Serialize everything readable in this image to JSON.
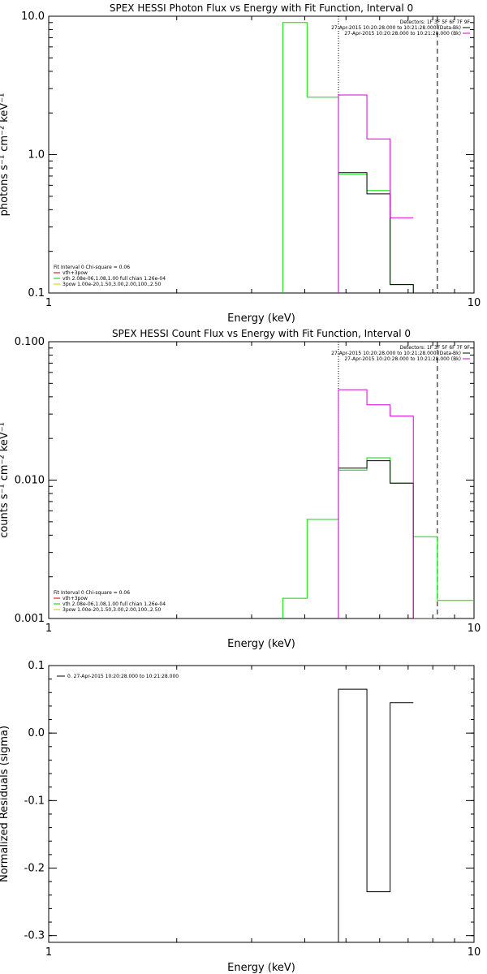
{
  "chart_data": [
    {
      "type": "line",
      "title": "SPEX HESSI Photon Flux vs Energy with Fit Function, Interval 0",
      "xlabel": "Energy (keV)",
      "ylabel": "photons s⁻¹ cm⁻² keV⁻¹",
      "xscale": "log",
      "yscale": "log",
      "xlim": [
        1,
        10
      ],
      "ylim": [
        0.1,
        10
      ],
      "x_ticks": [
        "1",
        "10"
      ],
      "y_ticks": [
        {
          "value": 0.1,
          "label": "0.1"
        },
        {
          "value": 1,
          "label": "1.0"
        },
        {
          "value": 10,
          "label": "10.0"
        }
      ],
      "grid": false,
      "legend_top_right": {
        "lines": [
          "Detectors: 1F 3F 5F 6F 7F 9F",
          "27-Apr-2015 10:20:28.000 to 10:21:28.000 (Data-Bk)",
          "27-Apr-2015 10:20:28.000 to 10:21:28.000 (Bk)"
        ],
        "colors": [
          "",
          "#000000",
          "#cc00cc"
        ]
      },
      "legend_bottom_left": {
        "lines": [
          "Fit Interval 0   Chi-square = 0.06",
          "vth+3pow",
          "vth 2.08e-06,1.08,1.00  full chian 1.26e-04",
          "3pow 1.00e-20,1.50,3.00,2.00,100.,2.50"
        ],
        "colors": [
          "",
          "#cc0000",
          "#00cc00",
          "#cccc00"
        ]
      },
      "vlines": [
        {
          "x": 4.8,
          "style": "dotted"
        },
        {
          "x": 8.2,
          "style": "dashed"
        }
      ],
      "series": [
        {
          "color": "#00e000",
          "edges": [
            3.55,
            4.05,
            4.8,
            5.6,
            6.35,
            7.2,
            8.2
          ],
          "values": [
            9.0,
            2.6,
            0.72,
            0.55,
            0.115,
            null
          ]
        },
        {
          "color": "#000000",
          "edges": [
            4.8,
            5.6,
            6.35,
            7.2,
            8.2
          ],
          "values": [
            0.74,
            0.52,
            0.115,
            null
          ]
        },
        {
          "color": "#dd00dd",
          "edges": [
            4.8,
            5.6,
            6.35,
            7.2
          ],
          "values": [
            2.7,
            1.3,
            0.35
          ]
        }
      ]
    },
    {
      "type": "line",
      "title": "SPEX HESSI Count Flux vs Energy with Fit Function, Interval 0",
      "xlabel": "Energy (keV)",
      "ylabel": "counts s⁻¹ cm⁻² keV⁻¹",
      "xscale": "log",
      "yscale": "log",
      "xlim": [
        1,
        10
      ],
      "ylim": [
        0.001,
        0.1
      ],
      "x_ticks": [
        "1",
        "10"
      ],
      "y_ticks": [
        {
          "value": 0.001,
          "label": "0.001"
        },
        {
          "value": 0.01,
          "label": "0.010"
        },
        {
          "value": 0.1,
          "label": "0.100"
        }
      ],
      "grid": false,
      "legend_top_right": {
        "lines": [
          "Detectors: 1F 3F 5F 6F 7F 9F",
          "27-Apr-2015 10:20:28.000 to 10:21:28.000 (Data-Bk)",
          "27-Apr-2015 10:20:28.000 to 10:21:28.000 (Bk)"
        ],
        "colors": [
          "",
          "#000000",
          "#cc00cc"
        ]
      },
      "legend_bottom_left": {
        "lines": [
          "Fit Interval 0   Chi-square = 0.06",
          "vth+3pow",
          "vth 2.08e-06,1.08,1.00  full chian 1.26e-04",
          "3pow 1.00e-20,1.50,3.00,2.00,100.,2.50"
        ],
        "colors": [
          "",
          "#cc0000",
          "#00cc00",
          "#cccc00"
        ]
      },
      "vlines": [
        {
          "x": 4.8,
          "style": "dotted"
        },
        {
          "x": 8.2,
          "style": "dashed"
        }
      ],
      "series": [
        {
          "color": "#00e000",
          "edges": [
            3.55,
            4.05,
            4.8,
            5.6,
            6.35,
            7.2,
            8.2,
            9.0,
            10.0
          ],
          "values": [
            0.0014,
            0.0052,
            0.0118,
            0.0145,
            0.0095,
            0.0039,
            0.00135,
            0.00135
          ]
        },
        {
          "color": "#000000",
          "edges": [
            4.8,
            5.6,
            6.35,
            7.2,
            8.2
          ],
          "values": [
            0.0122,
            0.0138,
            0.0095,
            null
          ]
        },
        {
          "color": "#dd00dd",
          "edges": [
            4.8,
            5.6,
            6.35,
            7.2,
            8.2
          ],
          "values": [
            0.045,
            0.035,
            0.029,
            null
          ]
        }
      ]
    },
    {
      "type": "line",
      "title": "",
      "xlabel": "Energy (keV)",
      "ylabel": "Normalized Residuals (sigma)",
      "xscale": "log",
      "yscale": "linear",
      "xlim": [
        1,
        10
      ],
      "ylim": [
        -0.31,
        0.1
      ],
      "x_ticks": [
        "1",
        "10"
      ],
      "y_ticks": [
        {
          "value": 0.1,
          "label": "0.1"
        },
        {
          "value": 0.0,
          "label": "0.0"
        },
        {
          "value": -0.1,
          "label": "-0.1"
        },
        {
          "value": -0.2,
          "label": "-0.2"
        },
        {
          "value": -0.3,
          "label": "-0.3"
        }
      ],
      "grid": false,
      "legend_top_left": {
        "lines": [
          "0. 27-Apr-2015 10:20:28.000 to 10:21:28.000"
        ],
        "colors": [
          "#000000"
        ]
      },
      "series": [
        {
          "color": "#000000",
          "edges": [
            4.8,
            5.6,
            6.35,
            7.2
          ],
          "values": [
            0.065,
            -0.235,
            0.045
          ]
        }
      ]
    }
  ]
}
